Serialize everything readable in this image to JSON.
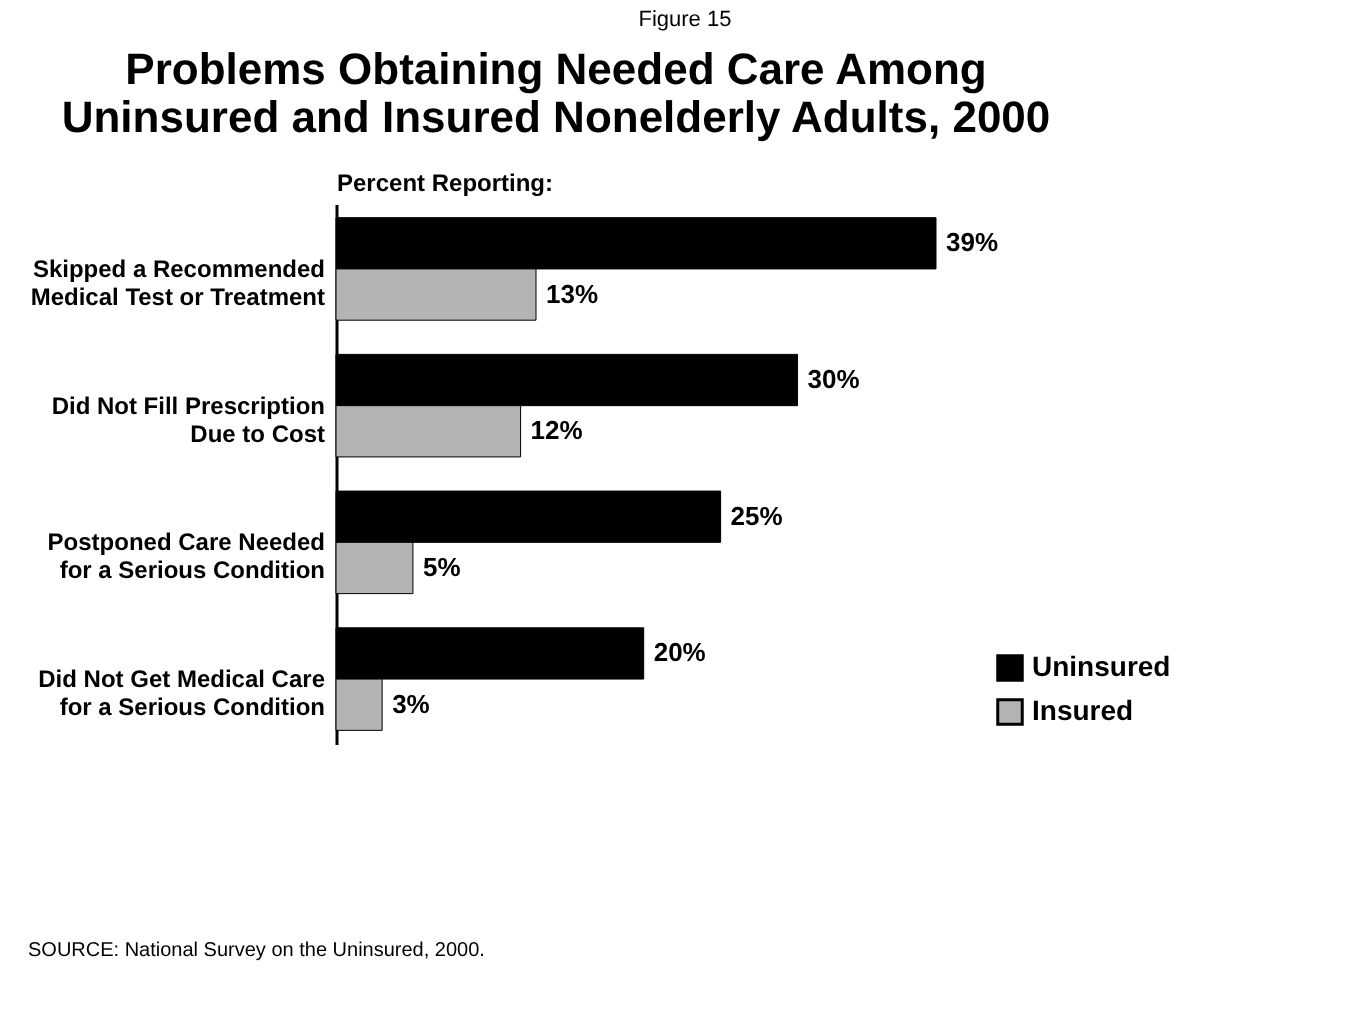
{
  "chart_data": {
    "type": "bar",
    "orientation": "horizontal",
    "title": "Problems Obtaining Needed Care Among\nUninsured and Insured Nonelderly Adults, 2000",
    "xlabel": "Percent Reporting:",
    "categories": [
      "Skipped a Recommended\nMedical Test or Treatment",
      "Did Not Fill Prescription\nDue to Cost",
      "Postponed Care Needed\nfor a Serious Condition",
      "Did Not Get Medical Care\nfor a Serious Condition"
    ],
    "series": [
      {
        "name": "Uninsured",
        "color": "#000000",
        "values": [
          39,
          30,
          25,
          20
        ],
        "value_labels": [
          "39%",
          "30%",
          "25%",
          "20%"
        ]
      },
      {
        "name": "Insured",
        "color": "#b4b4b4",
        "values": [
          13,
          12,
          5,
          3
        ],
        "value_labels": [
          "13%",
          "12%",
          "5%",
          "3%"
        ]
      }
    ],
    "legend": "bottom right",
    "grid": false,
    "annotations": [
      "Figure 15",
      "SOURCE: National Survey on the Uninsured, 2000."
    ]
  }
}
